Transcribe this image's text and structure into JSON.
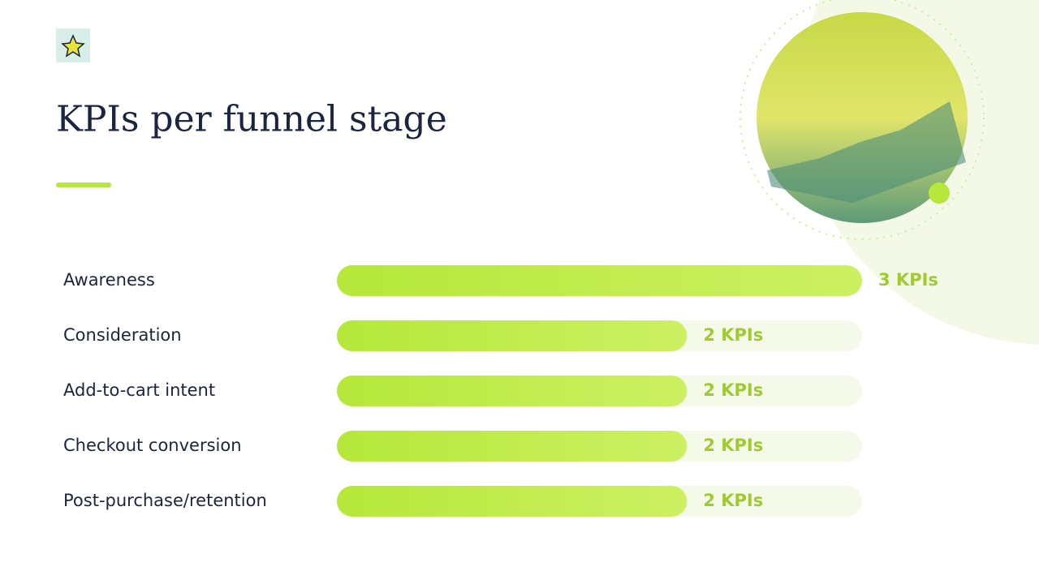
{
  "chart_data": {
    "type": "bar",
    "orientation": "horizontal",
    "title": "KPIs per funnel stage",
    "categories": [
      "Awareness",
      "Consideration",
      "Add-to-cart intent",
      "Checkout conversion",
      "Post-purchase/retention"
    ],
    "values": [
      3,
      2,
      2,
      2,
      2
    ],
    "value_labels": [
      "3 KPIs",
      "2 KPIs",
      "2 KPIs",
      "2 KPIs",
      "2 KPIs"
    ],
    "color": "#b5e83a"
  }
}
